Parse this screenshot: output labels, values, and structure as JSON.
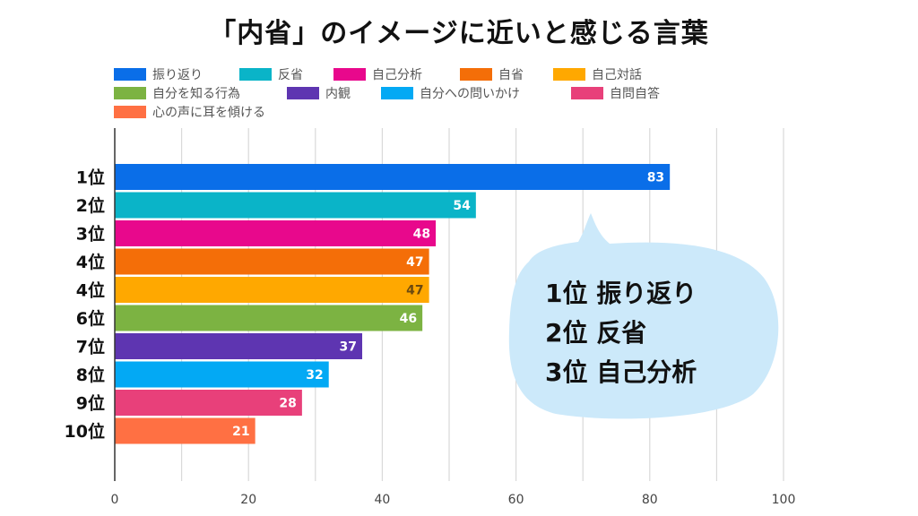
{
  "chart_data": {
    "type": "bar",
    "orientation": "horizontal",
    "title": "「内省」のイメージに近いと感じる言葉",
    "xlabel": "",
    "ylabel": "",
    "xlim": [
      0,
      100
    ],
    "x_ticks": [
      0,
      20,
      40,
      60,
      80,
      100
    ],
    "grid": true,
    "legend_position": "top",
    "categories": [
      "1位",
      "2位",
      "3位",
      "4位",
      "4位",
      "6位",
      "7位",
      "8位",
      "9位",
      "10位"
    ],
    "series": [
      {
        "name": "振り返り",
        "rank": "1位",
        "value": 83,
        "color": "#0a6ee8",
        "label_color": "#ffffff"
      },
      {
        "name": "反省",
        "rank": "2位",
        "value": 54,
        "color": "#0ab4c8",
        "label_color": "#ffffff"
      },
      {
        "name": "自己分析",
        "rank": "3位",
        "value": 48,
        "color": "#e8088c",
        "label_color": "#ffffff"
      },
      {
        "name": "自省",
        "rank": "4位",
        "value": 47,
        "color": "#f46e08",
        "label_color": "#ffffff"
      },
      {
        "name": "自己対話",
        "rank": "4位",
        "value": 47,
        "color": "#ffa800",
        "label_color": "#6b4a10"
      },
      {
        "name": "自分を知る行為",
        "rank": "6位",
        "value": 46,
        "color": "#7cb342",
        "label_color": "#ffffff"
      },
      {
        "name": "内観",
        "rank": "7位",
        "value": 37,
        "color": "#5e35b1",
        "label_color": "#ffffff"
      },
      {
        "name": "自分への問いかけ",
        "rank": "8位",
        "value": 32,
        "color": "#03a9f4",
        "label_color": "#ffffff"
      },
      {
        "name": "自問自答",
        "rank": "9位",
        "value": 28,
        "color": "#e8407a",
        "label_color": "#ffffff"
      },
      {
        "name": "心の声に耳を傾ける",
        "rank": "10位",
        "value": 21,
        "color": "#ff7043",
        "label_color": "#ffffff"
      }
    ]
  },
  "callout": {
    "lines": [
      "1位 振り返り",
      "2位 反省",
      "3位 自己分析"
    ],
    "color": "#cce9fa"
  }
}
